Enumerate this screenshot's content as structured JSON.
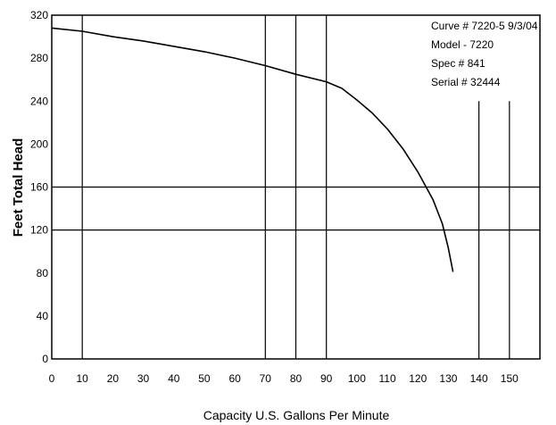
{
  "chart_data": {
    "type": "line",
    "xlabel": "Capacity U.S. Gallons Per Minute",
    "ylabel": "Feet Total Head",
    "xlim": [
      0,
      160
    ],
    "ylim": [
      0,
      320
    ],
    "x_ticks": [
      0,
      10,
      20,
      30,
      40,
      50,
      60,
      70,
      80,
      90,
      100,
      110,
      120,
      130,
      140,
      150
    ],
    "y_ticks": [
      0,
      40,
      80,
      120,
      160,
      200,
      240,
      280,
      320
    ],
    "x_tick_labels": [
      "0",
      "10",
      "20",
      "30",
      "40",
      "50",
      "60",
      "70",
      "80",
      "90",
      "100",
      "110",
      "120",
      "130",
      "140",
      "150"
    ],
    "y_tick_labels": [
      "0",
      "40",
      "80",
      "120",
      "160",
      "200",
      "240",
      "280",
      "320"
    ],
    "grid": {
      "vertical_at": [
        10,
        70,
        80,
        90
      ],
      "horizontal_at": [
        120,
        160
      ],
      "partial_vertical": [
        {
          "x": 140,
          "from": 0,
          "to": 240
        },
        {
          "x": 150,
          "from": 0,
          "to": 240
        }
      ]
    },
    "series": [
      {
        "x": [
          0,
          10,
          20,
          30,
          40,
          50,
          60,
          70,
          80,
          90,
          95,
          100,
          105,
          110,
          115,
          120,
          125,
          128,
          130,
          131.5
        ],
        "y": [
          308,
          305,
          300,
          296,
          291,
          286,
          280,
          273,
          265,
          258,
          252,
          241,
          229,
          214,
          196,
          174,
          148,
          126,
          103,
          81
        ]
      }
    ],
    "annotations": [
      "Curve # 7220-5 9/3/04",
      "Model - 7220",
      "Spec # 841",
      "Serial # 32444"
    ],
    "legend": "none"
  }
}
